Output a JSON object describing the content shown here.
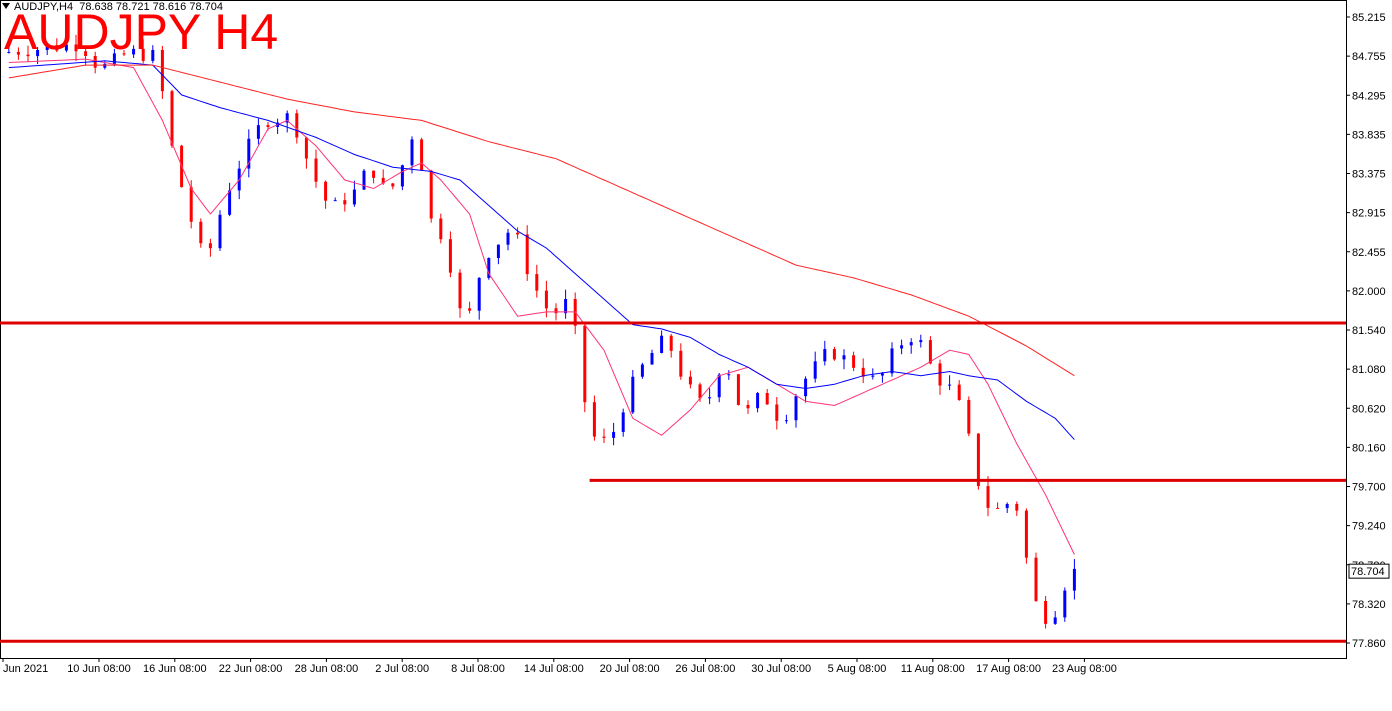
{
  "header": {
    "info_symbol": "AUDJPY,H4",
    "info_ohlc": "78.638 78.721 78.616 78.704",
    "title": "AUDJPY H4"
  },
  "colors": {
    "bull": "#0000ff",
    "bear": "#ff0000",
    "ma_fast": "#ff3377",
    "ma_mid": "#0000ff",
    "ma_slow": "#ff2222",
    "levels": "#dd0000"
  },
  "chart_data": {
    "type": "candlestick",
    "title": "AUDJPY H4",
    "y_ticks": [
      "85.215",
      "84.755",
      "84.295",
      "83.835",
      "83.375",
      "82.915",
      "82.455",
      "82.000",
      "81.540",
      "81.080",
      "80.620",
      "80.160",
      "79.700",
      "79.240",
      "78.780",
      "78.320",
      "77.860"
    ],
    "ylim": [
      77.86,
      85.215
    ],
    "x_ticks": [
      "Jun 2021",
      "10 Jun 08:00",
      "16 Jun 08:00",
      "22 Jun 08:00",
      "28 Jun 08:00",
      "2 Jul 08:00",
      "8 Jul 08:00",
      "14 Jul 08:00",
      "20 Jul 08:00",
      "26 Jul 08:00",
      "30 Jul 08:00",
      "5 Aug 08:00",
      "11 Aug 08:00",
      "17 Aug 08:00",
      "23 Aug 08:00"
    ],
    "current_price": "78.704",
    "horizontal_levels": [
      {
        "price": 81.62,
        "from_tick": "Jun 2021"
      },
      {
        "price": 79.77,
        "from_tick": "20 Jul 08:00"
      },
      {
        "price": 77.88,
        "from_tick": "Jun 2021"
      }
    ],
    "moving_averages": [
      {
        "role": "fast",
        "points": [
          [
            0,
            84.68
          ],
          [
            8,
            84.72
          ],
          [
            13,
            84.62
          ],
          [
            16,
            84.0
          ],
          [
            19,
            83.2
          ],
          [
            21,
            82.9
          ],
          [
            24,
            83.3
          ],
          [
            27,
            83.9
          ],
          [
            29,
            84.0
          ],
          [
            32,
            83.7
          ],
          [
            35,
            83.3
          ],
          [
            38,
            83.2
          ],
          [
            41,
            83.4
          ],
          [
            43,
            83.5
          ],
          [
            45,
            83.3
          ],
          [
            48,
            82.9
          ],
          [
            50,
            82.2
          ],
          [
            53,
            81.7
          ],
          [
            56,
            81.75
          ],
          [
            59,
            81.75
          ],
          [
            62,
            81.3
          ],
          [
            65,
            80.5
          ],
          [
            68,
            80.3
          ],
          [
            71,
            80.6
          ],
          [
            74,
            81.0
          ],
          [
            77,
            81.1
          ],
          [
            80,
            80.9
          ],
          [
            83,
            80.7
          ],
          [
            86,
            80.65
          ],
          [
            89,
            80.8
          ],
          [
            92,
            80.95
          ],
          [
            95,
            81.1
          ],
          [
            98,
            81.3
          ],
          [
            100,
            81.25
          ],
          [
            102,
            80.9
          ],
          [
            105,
            80.2
          ],
          [
            108,
            79.6
          ],
          [
            111,
            78.9
          ]
        ]
      },
      {
        "role": "mid",
        "points": [
          [
            0,
            84.62
          ],
          [
            10,
            84.7
          ],
          [
            15,
            84.65
          ],
          [
            18,
            84.3
          ],
          [
            22,
            84.15
          ],
          [
            27,
            84.0
          ],
          [
            32,
            83.8
          ],
          [
            36,
            83.6
          ],
          [
            40,
            83.45
          ],
          [
            44,
            83.4
          ],
          [
            47,
            83.3
          ],
          [
            50,
            83.0
          ],
          [
            53,
            82.7
          ],
          [
            56,
            82.5
          ],
          [
            59,
            82.2
          ],
          [
            62,
            81.9
          ],
          [
            65,
            81.6
          ],
          [
            68,
            81.55
          ],
          [
            71,
            81.45
          ],
          [
            74,
            81.25
          ],
          [
            77,
            81.1
          ],
          [
            80,
            80.9
          ],
          [
            83,
            80.85
          ],
          [
            86,
            80.9
          ],
          [
            89,
            81.0
          ],
          [
            92,
            81.05
          ],
          [
            95,
            81.0
          ],
          [
            98,
            81.05
          ],
          [
            100,
            81.0
          ],
          [
            103,
            80.95
          ],
          [
            106,
            80.7
          ],
          [
            109,
            80.5
          ],
          [
            111,
            80.25
          ]
        ]
      },
      {
        "role": "slow",
        "points": [
          [
            0,
            84.5
          ],
          [
            8,
            84.65
          ],
          [
            15,
            84.65
          ],
          [
            22,
            84.45
          ],
          [
            29,
            84.25
          ],
          [
            36,
            84.1
          ],
          [
            43,
            84.0
          ],
          [
            50,
            83.75
          ],
          [
            57,
            83.55
          ],
          [
            64,
            83.2
          ],
          [
            70,
            82.9
          ],
          [
            76,
            82.6
          ],
          [
            82,
            82.3
          ],
          [
            88,
            82.15
          ],
          [
            94,
            81.95
          ],
          [
            100,
            81.7
          ],
          [
            106,
            81.35
          ],
          [
            111,
            81.0
          ]
        ]
      }
    ],
    "candle_path": [
      [
        0,
        84.8
      ],
      [
        4,
        84.85
      ],
      [
        8,
        84.9
      ],
      [
        10,
        84.6
      ],
      [
        13,
        84.8
      ],
      [
        16,
        84.75
      ],
      [
        17,
        83.9
      ],
      [
        19,
        83.0
      ],
      [
        21,
        82.3
      ],
      [
        23,
        83.1
      ],
      [
        25,
        83.6
      ],
      [
        27,
        84.0
      ],
      [
        30,
        84.05
      ],
      [
        32,
        83.4
      ],
      [
        34,
        82.95
      ],
      [
        37,
        83.2
      ],
      [
        38,
        83.5
      ],
      [
        40,
        83.1
      ],
      [
        42,
        83.6
      ],
      [
        43,
        84.05
      ],
      [
        44,
        82.9
      ],
      [
        46,
        82.6
      ],
      [
        47,
        82.0
      ],
      [
        48,
        81.5
      ],
      [
        50,
        82.4
      ],
      [
        53,
        82.75
      ],
      [
        55,
        82.1
      ],
      [
        57,
        81.7
      ],
      [
        59,
        81.9
      ],
      [
        61,
        80.3
      ],
      [
        63,
        80.2
      ],
      [
        65,
        80.8
      ],
      [
        67,
        81.2
      ],
      [
        69,
        81.45
      ],
      [
        71,
        80.9
      ],
      [
        73,
        80.6
      ],
      [
        75,
        81.25
      ],
      [
        77,
        80.5
      ],
      [
        79,
        80.8
      ],
      [
        81,
        80.45
      ],
      [
        83,
        80.9
      ],
      [
        86,
        81.3
      ],
      [
        89,
        81.1
      ],
      [
        91,
        80.9
      ],
      [
        93,
        81.35
      ],
      [
        95,
        81.5
      ],
      [
        97,
        81.0
      ],
      [
        99,
        80.8
      ],
      [
        100,
        80.5
      ],
      [
        102,
        79.5
      ],
      [
        104,
        79.4
      ],
      [
        105,
        79.6
      ],
      [
        106,
        79.3
      ],
      [
        107,
        78.4
      ],
      [
        109,
        78.1
      ],
      [
        111,
        78.7
      ]
    ]
  }
}
